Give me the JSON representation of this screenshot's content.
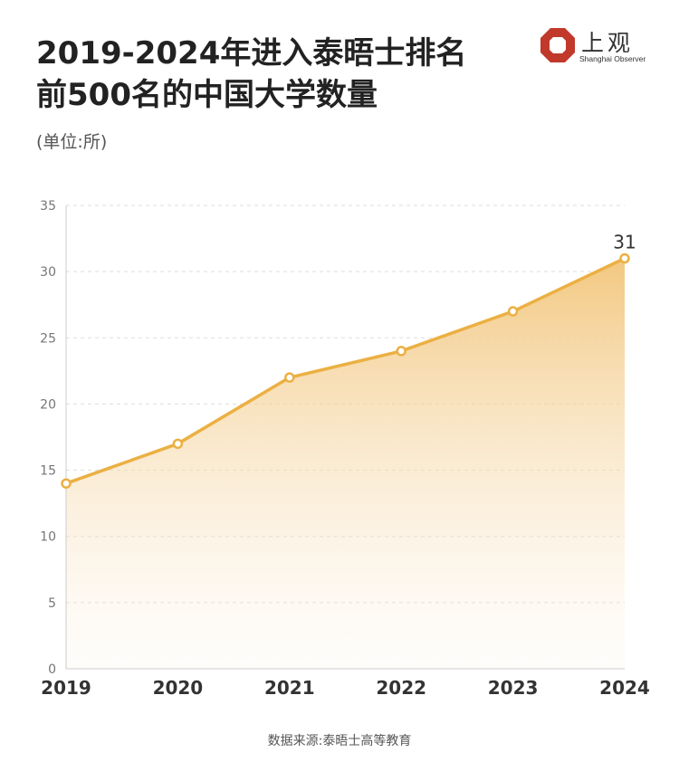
{
  "header": {
    "title_line1": "2019-2024年进入泰晤士排名",
    "title_line2": "前500名的中国大学数量",
    "unit": "(单位:所)"
  },
  "logo": {
    "cn": "上观",
    "en": "Shanghai Observer",
    "icon": "shanghai-observer-logo-icon",
    "color": "#c0392b"
  },
  "source": "数据来源:泰晤士高等教育",
  "colors": {
    "line": "#ebb043",
    "area_top": "#f2c57a",
    "grid": "#dddddd",
    "axis": "#cccccc",
    "tick_text": "#777777",
    "xtick_text": "#333333"
  },
  "chart_data": {
    "type": "area",
    "title": "2019-2024年进入泰晤士排名前500名的中国大学数量",
    "xlabel": "",
    "ylabel": "(单位:所)",
    "categories": [
      "2019",
      "2020",
      "2021",
      "2022",
      "2023",
      "2024"
    ],
    "values": [
      14,
      17,
      22,
      24,
      27,
      31
    ],
    "ylim": [
      0,
      35
    ],
    "yticks": [
      0,
      5,
      10,
      15,
      20,
      25,
      30,
      35
    ],
    "grid": true,
    "data_labels": [
      {
        "index": 5,
        "text": "31"
      }
    ]
  }
}
